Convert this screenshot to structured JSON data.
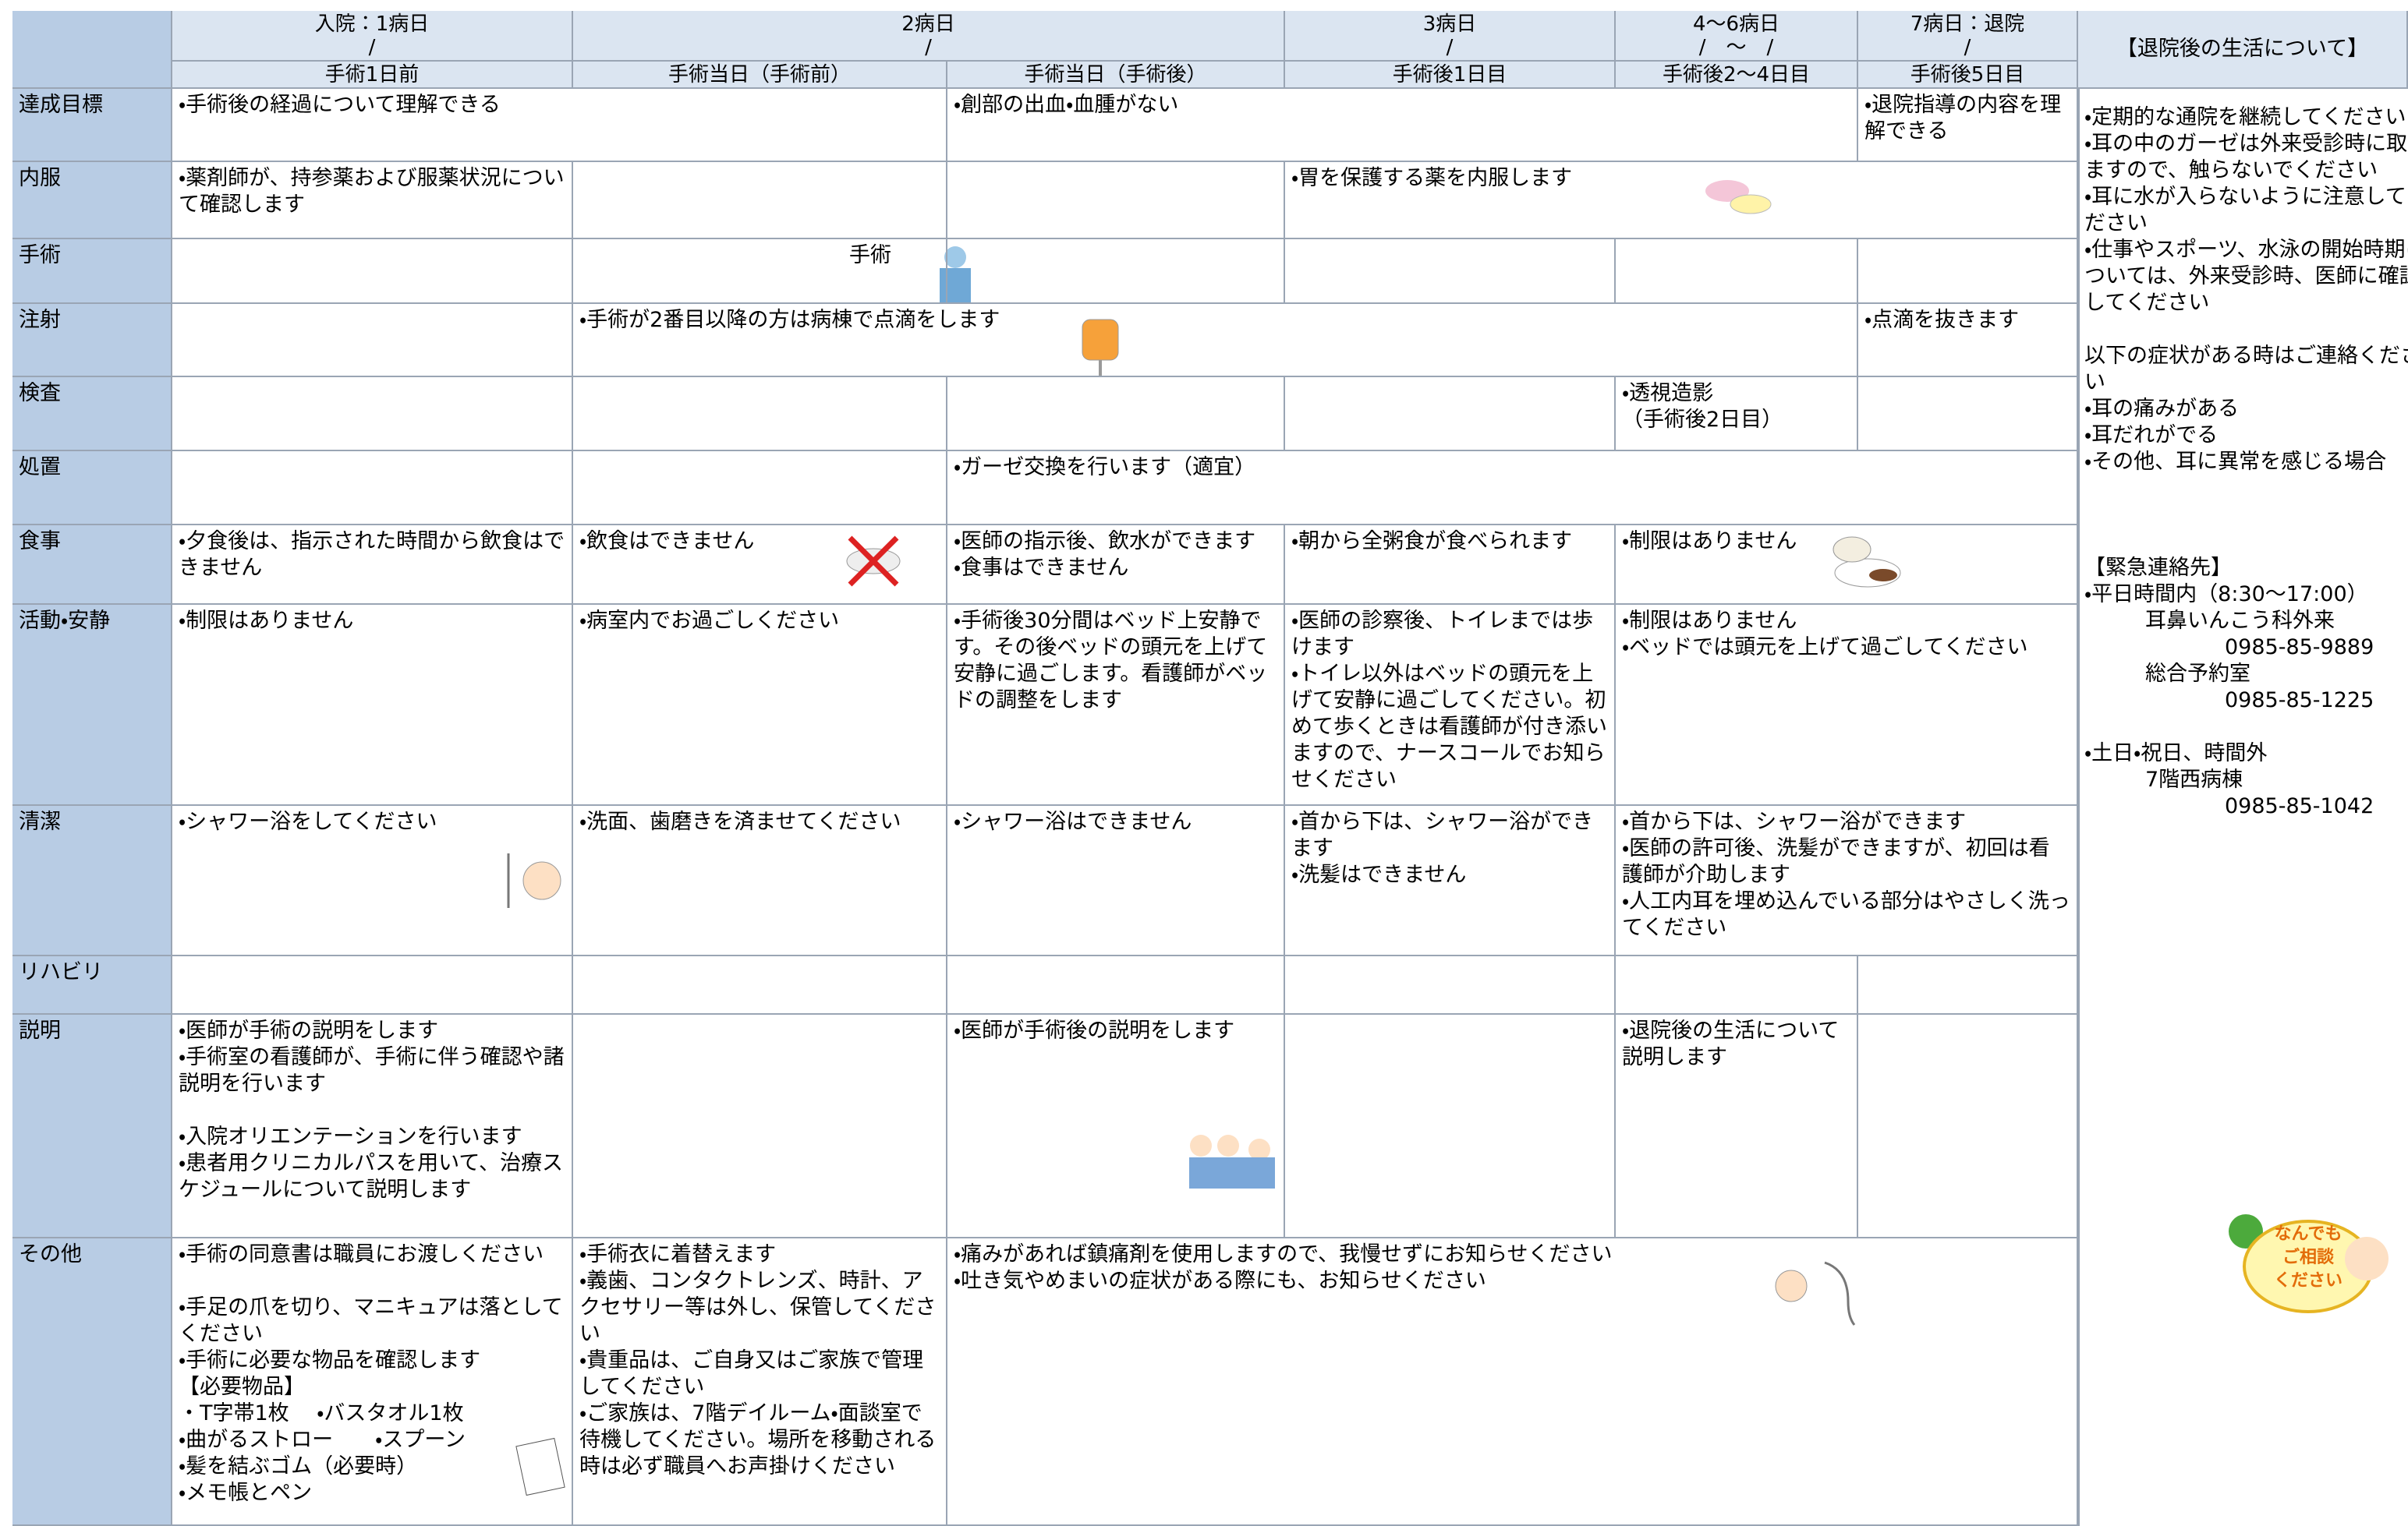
{
  "header": {
    "days": [
      {
        "label": "入院：1病日",
        "date": "/"
      },
      {
        "label": "2病日",
        "date": "/"
      },
      {
        "label": "3病日",
        "date": "/"
      },
      {
        "label": "4～6病日",
        "date": "/　～　/"
      },
      {
        "label": "7病日：退院",
        "date": "/"
      }
    ],
    "phases": [
      "手術1日前",
      "手術当日（手術前）",
      "手術当日（手術後）",
      "手術後1日目",
      "手術後2～4日目",
      "手術後5日目"
    ],
    "aside_title": "【退院後の生活について】"
  },
  "rows": [
    {
      "label": "達成目標",
      "cells": [
        [
          [
            "・手術後の経過について理解できる"
          ]
        ],
        [
          [
            "・創部の出血・血腫がない"
          ]
        ],
        [
          [
            "・退院指導の内容を理解できる"
          ]
        ]
      ]
    },
    {
      "label": "内服",
      "cells": [
        [
          [
            "・薬剤師が、持参薬および服薬状況について確認します"
          ]
        ],
        [
          [
            "・胃を保護する薬を内服します"
          ]
        ]
      ]
    },
    {
      "label": "手術",
      "cells": [
        [
          [
            "手術"
          ]
        ]
      ]
    },
    {
      "label": "注射",
      "cells": [
        [
          [
            "・手術が2番目以降の方は病棟で点滴をします"
          ]
        ],
        [
          [
            "・点滴を抜きます"
          ]
        ]
      ]
    },
    {
      "label": "検査",
      "cells": [
        [
          [
            "・透視造影",
            "（手術後2日目）"
          ]
        ]
      ]
    },
    {
      "label": "処置",
      "cells": [
        [
          [
            "・ガーゼ交換を行います（適宜）"
          ]
        ]
      ]
    },
    {
      "label": "食事",
      "cells": [
        [
          [
            "・夕食後は、指示された時間から飲食はできません"
          ]
        ],
        [
          [
            "・飲食はできません"
          ]
        ],
        [
          [
            "・医師の指示後、飲水ができます",
            "・食事はできません"
          ]
        ],
        [
          [
            "・朝から全粥食が食べられます"
          ]
        ],
        [
          [
            "・制限はありません"
          ]
        ]
      ]
    },
    {
      "label": "活動・安静",
      "cells": [
        [
          [
            "・制限はありません"
          ]
        ],
        [
          [
            "・病室内でお過ごしください"
          ]
        ],
        [
          [
            "・手術後30分間はベッド上安静です。その後ベッドの頭元を上げて安静に過ごします。看護師がベッドの調整をします"
          ]
        ],
        [
          [
            "・医師の診察後、トイレまでは歩けます",
            "・トイレ以外はベッドの頭元を上げて安静に過ごしてください。初めて歩くときは看護師が付き添いますので、ナースコールでお知らせください"
          ]
        ],
        [
          [
            "・制限はありません",
            "・ベッドでは頭元を上げて過ごしてください"
          ]
        ]
      ]
    },
    {
      "label": "清潔",
      "cells": [
        [
          [
            "・シャワー浴をしてください"
          ]
        ],
        [
          [
            "・洗面、歯磨きを済ませてください"
          ]
        ],
        [
          [
            "・シャワー浴はできません"
          ]
        ],
        [
          [
            "・首から下は、シャワー浴ができます",
            "・洗髪はできません"
          ]
        ],
        [
          [
            "・首から下は、シャワー浴ができます",
            "・医師の許可後、洗髪ができますが、初回は看護師が介助します",
            "・人工内耳を埋め込んでいる部分はやさしく洗ってください"
          ]
        ]
      ]
    },
    {
      "label": "リハビリ",
      "cells": []
    },
    {
      "label": "説明",
      "cells": [
        [
          [
            "・医師が手術の説明をします",
            "・手術室の看護師が、手術に伴う確認や諸説明を行います"
          ],
          [
            "・入院オリエンテーションを行います",
            "・患者用クリニカルパスを用いて、治療スケジュールについて説明します"
          ]
        ],
        [
          [
            "・医師が手術後の説明をします"
          ]
        ],
        [
          [
            "・退院後の生活について説明します"
          ]
        ]
      ]
    },
    {
      "label": "その他",
      "cells": [
        [
          [
            "・手術の同意書は職員にお渡しください"
          ],
          [
            "・手足の爪を切り、マニキュアは落としてください",
            "・手術に必要な物品を確認します",
            "【必要物品】",
            "・T字帯1枚　 ・バスタオル1枚",
            "・曲がるストロー　　・スプーン",
            "・髪を結ぶゴム（必要時）",
            "・メモ帳とペン"
          ]
        ],
        [
          [
            "・手術衣に着替えます",
            "・義歯、コンタクトレンズ、時計、アクセサリー等は外し、保管してください",
            "・貴重品は、ご自身又はご家族で管理してください",
            "・ご家族は、7階デイルーム・面談室で待機してください。場所を移動される時は必ず職員へお声掛けください"
          ]
        ],
        [
          [
            "・痛みがあれば鎮痛剤を使用しますので、我慢せずにお知らせください",
            "・吐き気やめまいの症状がある際にも、お知らせください"
          ]
        ]
      ]
    }
  ],
  "aside": {
    "groups": [
      [
        "・定期的な通院を継続してください",
        "・耳の中のガーゼは外来受診時に取りますので、触らないでください",
        "・耳に水が入らないように注意してください",
        "・仕事やスポーツ、水泳の開始時期については、外来受診時、医師に確認してください"
      ],
      [
        "以下の症状がある時はご連絡ください",
        "・耳の痛みがある",
        "・耳だれがでる",
        "・その他、耳に異常を感じる場合"
      ]
    ],
    "contact": {
      "title": "【緊急連絡先】",
      "entries": [
        {
          "time": "・平日時間内（8:30～17:00）",
          "places": [
            {
              "name": "耳鼻いんこう科外来",
              "tel": "0985-85-9889"
            },
            {
              "name": "総合予約室",
              "tel": "0985-85-1225"
            }
          ]
        },
        {
          "time": "・土日・祝日、時間外",
          "places": [
            {
              "name": "7階西病棟",
              "tel": "0985-85-1042"
            }
          ]
        }
      ]
    },
    "badge": [
      "なんでも",
      "ご相談",
      "ください"
    ]
  }
}
